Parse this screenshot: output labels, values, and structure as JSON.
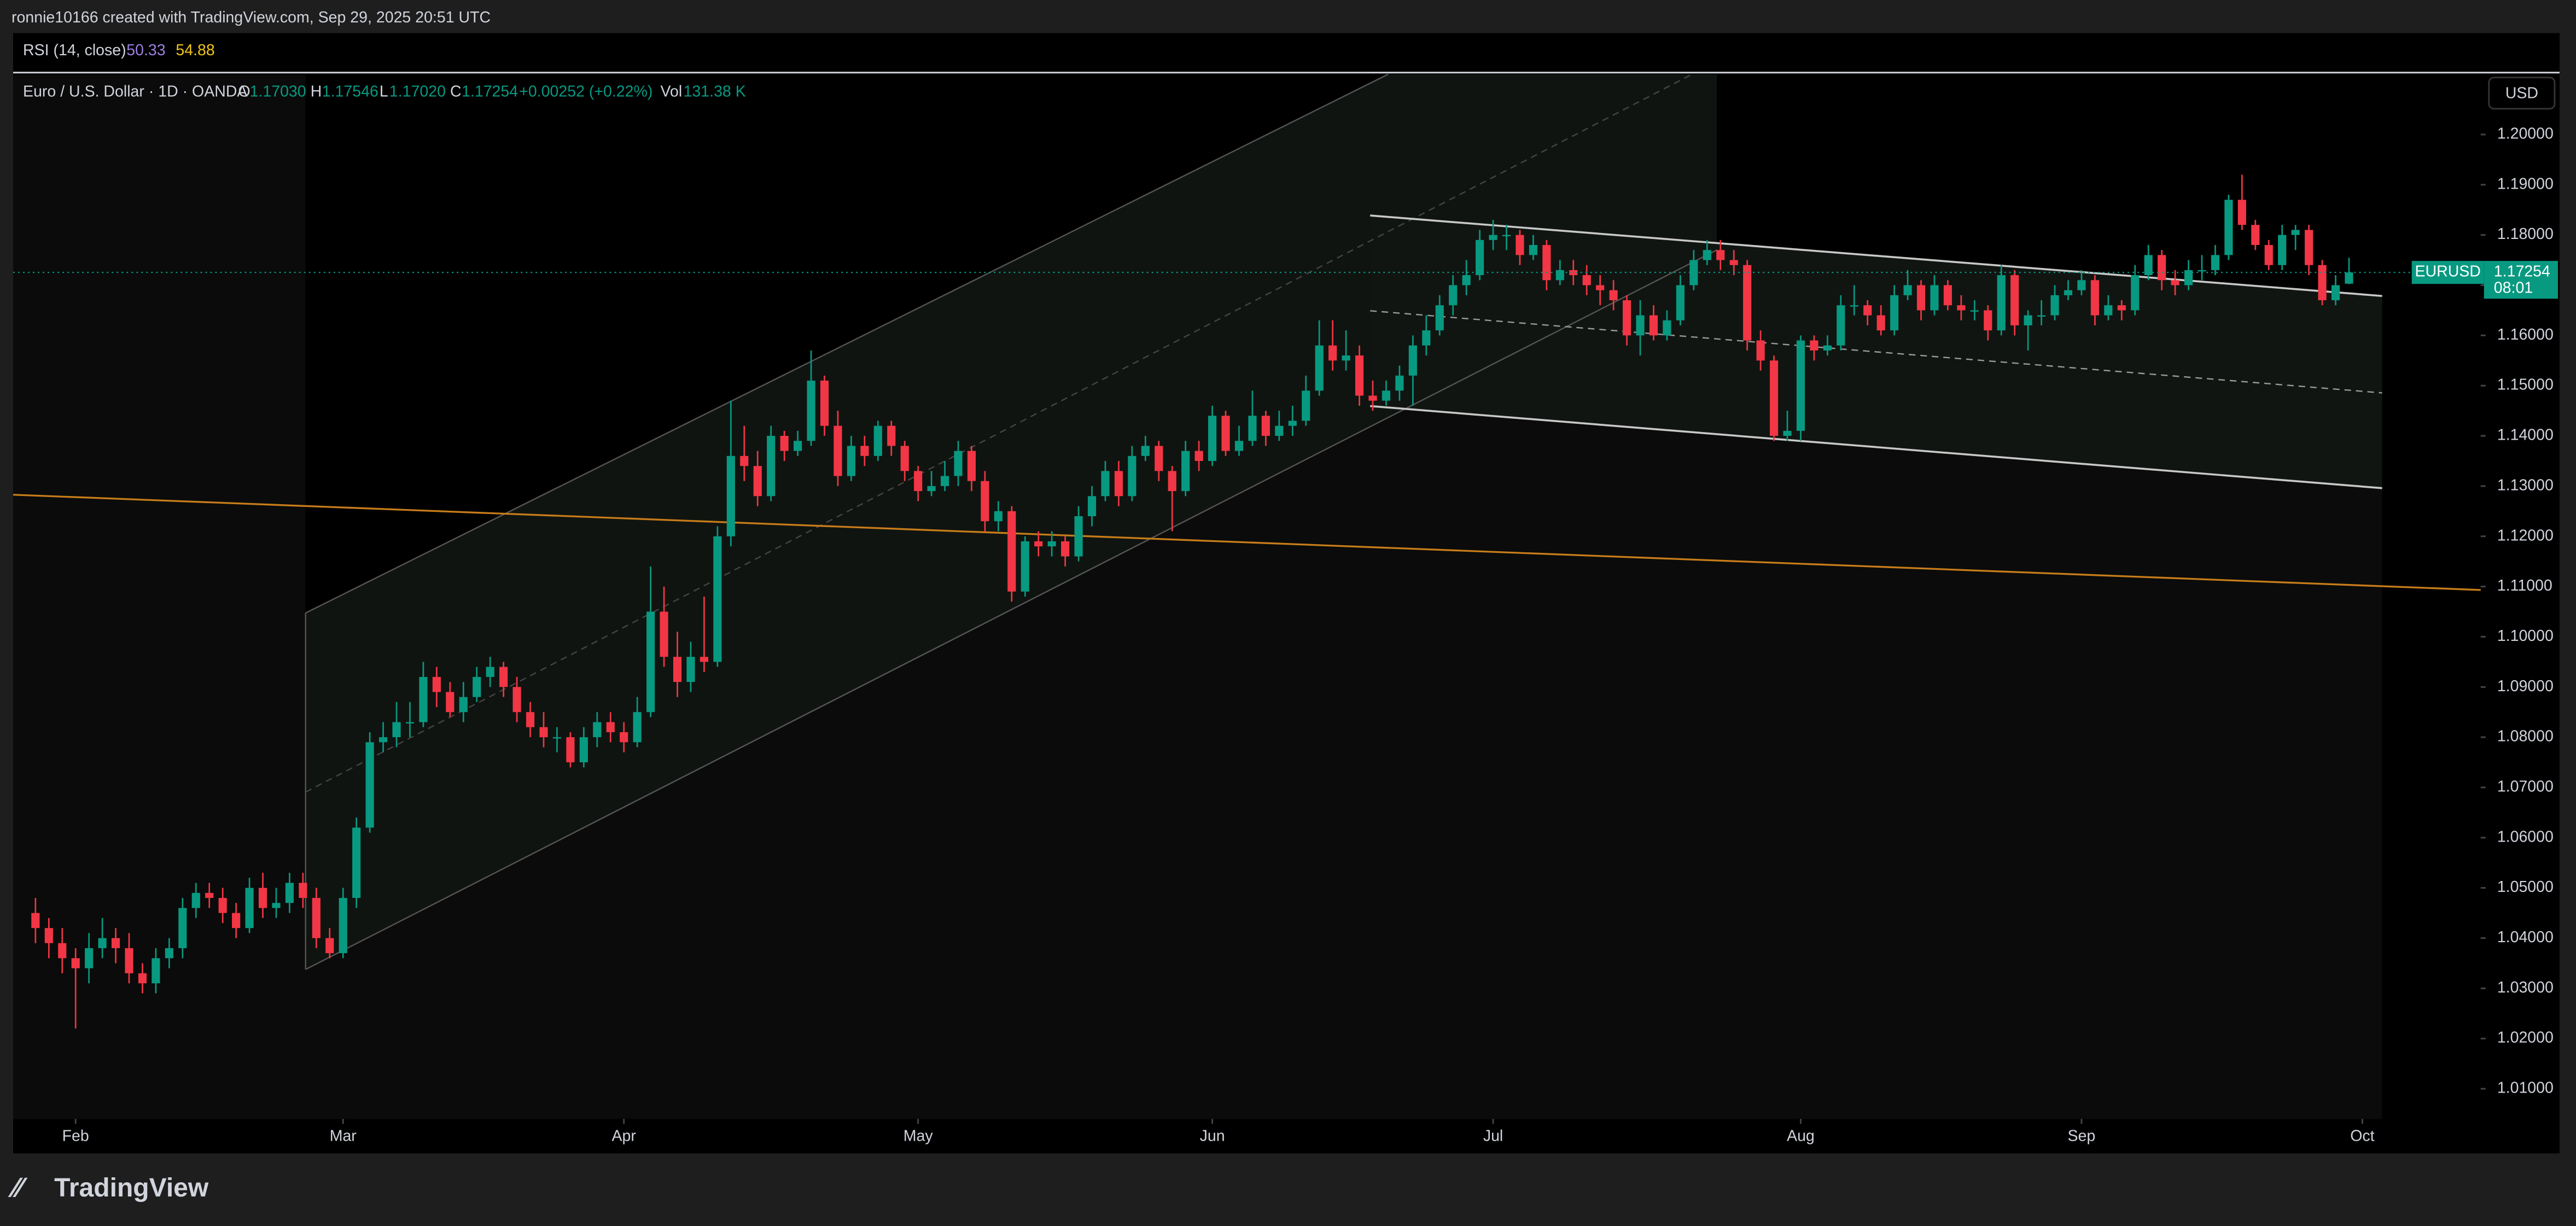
{
  "header": {
    "credit": "ronnie10166 created with TradingView.com, Sep 29, 2025 20:51 UTC",
    "rsi_label": "RSI (14, close)",
    "rsi_value_1": "50.33",
    "rsi_value_2": "54.88",
    "symbol": "Euro / U.S. Dollar · 1D · OANDA",
    "o_label": "O",
    "o_value": "1.17030",
    "h_label": "H",
    "h_value": "1.17546",
    "l_label": "L",
    "l_value": "1.17020",
    "c_label": "C",
    "c_value": "1.17254",
    "change": "+0.00252 (+0.22%)",
    "vol_label": "Vol",
    "vol_value": "131.38 K",
    "currency": "USD",
    "ticker_tag": "EURUSD",
    "countdown": "08:01",
    "brand": "TradingView"
  },
  "chart_data": {
    "type": "candlestick",
    "up_color": "#089981",
    "down_color": "#f23645",
    "grid": false,
    "xlim": [
      -1.67,
      182.85
    ],
    "xticks": [
      {
        "value": 3,
        "label": "Feb"
      },
      {
        "value": 23,
        "label": "Mar"
      },
      {
        "value": 44,
        "label": "Apr"
      },
      {
        "value": 66,
        "label": "May"
      },
      {
        "value": 88,
        "label": "Jun"
      },
      {
        "value": 109,
        "label": "Jul"
      },
      {
        "value": 132,
        "label": "Aug"
      },
      {
        "value": 153,
        "label": "Sep"
      },
      {
        "value": 174,
        "label": "Oct"
      }
    ],
    "ylim": [
      1.004,
      1.212
    ],
    "yticks": [
      {
        "value": 1.01,
        "label": "1.01000"
      },
      {
        "value": 1.02,
        "label": "1.02000"
      },
      {
        "value": 1.03,
        "label": "1.03000"
      },
      {
        "value": 1.04,
        "label": "1.04000"
      },
      {
        "value": 1.05,
        "label": "1.05000"
      },
      {
        "value": 1.06,
        "label": "1.06000"
      },
      {
        "value": 1.07,
        "label": "1.07000"
      },
      {
        "value": 1.08,
        "label": "1.08000"
      },
      {
        "value": 1.09,
        "label": "1.09000"
      },
      {
        "value": 1.1,
        "label": "1.10000"
      },
      {
        "value": 1.11,
        "label": "1.11000"
      },
      {
        "value": 1.12,
        "label": "1.12000"
      },
      {
        "value": 1.13,
        "label": "1.13000"
      },
      {
        "value": 1.14,
        "label": "1.14000"
      },
      {
        "value": 1.15,
        "label": "1.15000"
      },
      {
        "value": 1.16,
        "label": "1.16000"
      },
      {
        "value": 1.17,
        "label": "1.17000"
      },
      {
        "value": 1.18,
        "label": "1.18000"
      },
      {
        "value": 1.19,
        "label": "1.19000"
      },
      {
        "value": 1.2,
        "label": "1.20000"
      }
    ],
    "open": [
      1.045,
      1.042,
      1.039,
      1.036,
      1.034,
      1.038,
      1.04,
      1.038,
      1.033,
      1.031,
      1.036,
      1.038,
      1.046,
      1.049,
      1.048,
      1.045,
      1.042,
      1.05,
      1.046,
      1.047,
      1.051,
      1.048,
      1.04,
      1.037,
      1.048,
      1.062,
      1.079,
      1.08,
      1.083,
      1.083,
      1.092,
      1.089,
      1.085,
      1.088,
      1.092,
      1.094,
      1.09,
      1.085,
      1.082,
      1.08,
      1.08,
      1.075,
      1.08,
      1.083,
      1.081,
      1.079,
      1.085,
      1.105,
      1.096,
      1.091,
      1.096,
      1.095,
      1.12,
      1.136,
      1.134,
      1.128,
      1.14,
      1.137,
      1.139,
      1.151,
      1.142,
      1.132,
      1.138,
      1.136,
      1.142,
      1.138,
      1.133,
      1.129,
      1.13,
      1.132,
      1.137,
      1.131,
      1.123,
      1.125,
      1.109,
      1.119,
      1.118,
      1.119,
      1.116,
      1.124,
      1.128,
      1.133,
      1.128,
      1.136,
      1.138,
      1.133,
      1.129,
      1.137,
      1.135,
      1.144,
      1.137,
      1.139,
      1.144,
      1.14,
      1.142,
      1.143,
      1.149,
      1.158,
      1.155,
      1.156,
      1.148,
      1.147,
      1.149,
      1.152,
      1.158,
      1.161,
      1.166,
      1.17,
      1.172,
      1.179,
      1.18,
      1.18,
      1.176,
      1.178,
      1.171,
      1.173,
      1.172,
      1.17,
      1.169,
      1.167,
      1.16,
      1.164,
      1.16,
      1.163,
      1.17,
      1.175,
      1.177,
      1.175,
      1.174,
      1.159,
      1.155,
      1.14,
      1.141,
      1.159,
      1.157,
      1.158,
      1.166,
      1.166,
      1.164,
      1.161,
      1.168,
      1.17,
      1.165,
      1.17,
      1.166,
      1.165,
      1.165,
      1.161,
      1.172,
      1.162,
      1.164,
      1.164,
      1.168,
      1.169,
      1.171,
      1.164,
      1.166,
      1.165,
      1.172,
      1.176,
      1.171,
      1.17,
      1.173,
      1.173,
      1.176,
      1.187,
      1.182,
      1.178,
      1.174,
      1.18,
      1.181,
      1.174,
      1.167,
      1.1703
    ],
    "close": [
      1.042,
      1.039,
      1.036,
      1.034,
      1.038,
      1.04,
      1.038,
      1.033,
      1.031,
      1.036,
      1.038,
      1.046,
      1.049,
      1.048,
      1.045,
      1.042,
      1.05,
      1.046,
      1.047,
      1.051,
      1.048,
      1.04,
      1.037,
      1.048,
      1.062,
      1.079,
      1.08,
      1.083,
      1.083,
      1.092,
      1.089,
      1.085,
      1.088,
      1.092,
      1.094,
      1.09,
      1.085,
      1.082,
      1.08,
      1.08,
      1.075,
      1.08,
      1.083,
      1.081,
      1.079,
      1.085,
      1.105,
      1.096,
      1.091,
      1.096,
      1.095,
      1.12,
      1.136,
      1.134,
      1.128,
      1.14,
      1.137,
      1.139,
      1.151,
      1.142,
      1.132,
      1.138,
      1.136,
      1.142,
      1.138,
      1.133,
      1.129,
      1.13,
      1.132,
      1.137,
      1.131,
      1.123,
      1.125,
      1.109,
      1.119,
      1.118,
      1.119,
      1.116,
      1.124,
      1.128,
      1.133,
      1.128,
      1.136,
      1.138,
      1.133,
      1.129,
      1.137,
      1.135,
      1.144,
      1.137,
      1.139,
      1.144,
      1.14,
      1.142,
      1.143,
      1.149,
      1.158,
      1.155,
      1.156,
      1.148,
      1.147,
      1.149,
      1.152,
      1.158,
      1.161,
      1.166,
      1.17,
      1.172,
      1.179,
      1.18,
      1.18,
      1.176,
      1.178,
      1.171,
      1.173,
      1.172,
      1.17,
      1.169,
      1.167,
      1.16,
      1.164,
      1.16,
      1.163,
      1.17,
      1.175,
      1.177,
      1.175,
      1.174,
      1.159,
      1.155,
      1.14,
      1.141,
      1.159,
      1.157,
      1.158,
      1.166,
      1.166,
      1.164,
      1.161,
      1.168,
      1.17,
      1.165,
      1.17,
      1.166,
      1.165,
      1.165,
      1.161,
      1.172,
      1.162,
      1.164,
      1.164,
      1.168,
      1.169,
      1.171,
      1.164,
      1.166,
      1.165,
      1.172,
      1.176,
      1.171,
      1.17,
      1.173,
      1.173,
      1.176,
      1.187,
      1.182,
      1.178,
      1.174,
      1.18,
      1.181,
      1.174,
      1.167,
      1.17,
      1.17254
    ],
    "high": [
      1.048,
      1.044,
      1.042,
      1.038,
      1.041,
      1.044,
      1.042,
      1.041,
      1.035,
      1.038,
      1.04,
      1.048,
      1.051,
      1.051,
      1.05,
      1.047,
      1.052,
      1.053,
      1.05,
      1.053,
      1.053,
      1.05,
      1.042,
      1.05,
      1.064,
      1.081,
      1.083,
      1.087,
      1.087,
      1.095,
      1.094,
      1.091,
      1.091,
      1.094,
      1.096,
      1.095,
      1.092,
      1.087,
      1.085,
      1.082,
      1.081,
      1.082,
      1.085,
      1.085,
      1.083,
      1.088,
      1.114,
      1.11,
      1.101,
      1.099,
      1.108,
      1.122,
      1.147,
      1.142,
      1.137,
      1.142,
      1.141,
      1.141,
      1.157,
      1.152,
      1.145,
      1.14,
      1.14,
      1.143,
      1.143,
      1.139,
      1.134,
      1.133,
      1.135,
      1.139,
      1.138,
      1.133,
      1.127,
      1.126,
      1.12,
      1.121,
      1.121,
      1.12,
      1.126,
      1.13,
      1.135,
      1.135,
      1.138,
      1.14,
      1.139,
      1.134,
      1.139,
      1.139,
      1.146,
      1.145,
      1.142,
      1.149,
      1.145,
      1.145,
      1.146,
      1.152,
      1.163,
      1.163,
      1.161,
      1.158,
      1.151,
      1.151,
      1.154,
      1.16,
      1.164,
      1.168,
      1.172,
      1.175,
      1.181,
      1.183,
      1.182,
      1.181,
      1.18,
      1.179,
      1.175,
      1.175,
      1.174,
      1.172,
      1.171,
      1.168,
      1.167,
      1.166,
      1.165,
      1.172,
      1.177,
      1.179,
      1.179,
      1.177,
      1.175,
      1.161,
      1.156,
      1.145,
      1.16,
      1.16,
      1.16,
      1.168,
      1.17,
      1.167,
      1.166,
      1.17,
      1.173,
      1.171,
      1.172,
      1.171,
      1.168,
      1.167,
      1.166,
      1.174,
      1.173,
      1.165,
      1.167,
      1.17,
      1.171,
      1.173,
      1.172,
      1.168,
      1.167,
      1.174,
      1.178,
      1.177,
      1.173,
      1.175,
      1.176,
      1.178,
      1.188,
      1.192,
      1.183,
      1.179,
      1.182,
      1.182,
      1.182,
      1.175,
      1.172,
      1.17546
    ],
    "low": [
      1.039,
      1.036,
      1.033,
      1.022,
      1.031,
      1.036,
      1.035,
      1.031,
      1.029,
      1.029,
      1.034,
      1.036,
      1.044,
      1.046,
      1.043,
      1.04,
      1.041,
      1.044,
      1.044,
      1.045,
      1.046,
      1.038,
      1.036,
      1.036,
      1.046,
      1.061,
      1.077,
      1.078,
      1.08,
      1.082,
      1.086,
      1.084,
      1.083,
      1.087,
      1.09,
      1.088,
      1.083,
      1.08,
      1.078,
      1.077,
      1.074,
      1.074,
      1.078,
      1.079,
      1.077,
      1.078,
      1.084,
      1.094,
      1.088,
      1.089,
      1.093,
      1.094,
      1.118,
      1.131,
      1.126,
      1.127,
      1.135,
      1.136,
      1.138,
      1.14,
      1.13,
      1.131,
      1.134,
      1.135,
      1.136,
      1.131,
      1.127,
      1.128,
      1.129,
      1.13,
      1.129,
      1.121,
      1.121,
      1.107,
      1.108,
      1.116,
      1.116,
      1.114,
      1.115,
      1.122,
      1.127,
      1.126,
      1.127,
      1.135,
      1.131,
      1.121,
      1.128,
      1.133,
      1.134,
      1.136,
      1.136,
      1.138,
      1.138,
      1.139,
      1.14,
      1.142,
      1.148,
      1.153,
      1.153,
      1.146,
      1.145,
      1.146,
      1.147,
      1.146,
      1.156,
      1.16,
      1.164,
      1.168,
      1.171,
      1.177,
      1.177,
      1.174,
      1.175,
      1.169,
      1.17,
      1.17,
      1.168,
      1.166,
      1.165,
      1.158,
      1.156,
      1.159,
      1.159,
      1.162,
      1.169,
      1.174,
      1.173,
      1.172,
      1.157,
      1.153,
      1.139,
      1.139,
      1.139,
      1.155,
      1.156,
      1.157,
      1.164,
      1.162,
      1.16,
      1.16,
      1.167,
      1.163,
      1.164,
      1.165,
      1.163,
      1.163,
      1.159,
      1.16,
      1.16,
      1.157,
      1.162,
      1.163,
      1.167,
      1.168,
      1.162,
      1.163,
      1.163,
      1.164,
      1.171,
      1.169,
      1.168,
      1.169,
      1.171,
      1.172,
      1.175,
      1.181,
      1.177,
      1.173,
      1.173,
      1.177,
      1.172,
      1.166,
      1.166,
      1.1702
    ]
  }
}
